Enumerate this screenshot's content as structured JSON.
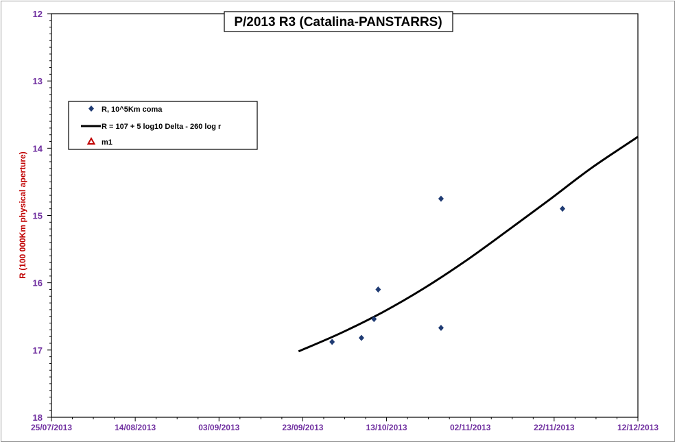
{
  "chart_data": {
    "type": "scatter",
    "title": "P/2013 R3 (Catalina-PANSTARRS)",
    "ylabel": "R (100 000Km physical aperture)",
    "xlabel": "",
    "ylim": [
      12,
      18
    ],
    "y_inverted": true,
    "y_ticks": [
      "12",
      "13",
      "14",
      "15",
      "16",
      "17",
      "18"
    ],
    "x_ticks": [
      "25/07/2013",
      "14/08/2013",
      "03/09/2013",
      "23/09/2013",
      "13/10/2013",
      "02/11/2013",
      "22/11/2013",
      "12/12/2013"
    ],
    "xlim": [
      "2013-07-25",
      "2013-12-12"
    ],
    "grid": false,
    "legend_position": "upper-left",
    "series": [
      {
        "name": "R, 10^5Km coma",
        "kind": "scatter",
        "marker": "diamond",
        "color": "#1f3b73",
        "x": [
          "2013-09-30",
          "2013-10-07",
          "2013-10-10",
          "2013-10-11",
          "2013-10-26",
          "2013-10-26",
          "2013-11-24"
        ],
        "y": [
          16.88,
          16.82,
          16.54,
          16.1,
          14.75,
          16.67,
          14.9
        ]
      },
      {
        "name": "R = 107 + 5 log10 Delta - 260  log r",
        "kind": "line",
        "color": "#000000",
        "x": [
          "2013-09-22",
          "2013-10-02",
          "2013-10-12",
          "2013-10-22",
          "2013-11-01",
          "2013-11-11",
          "2013-11-21",
          "2013-12-01",
          "2013-12-12"
        ],
        "y": [
          17.02,
          16.75,
          16.44,
          16.08,
          15.67,
          15.22,
          14.76,
          14.29,
          13.83
        ]
      },
      {
        "name": "m1",
        "kind": "scatter",
        "marker": "triangle",
        "color": "#c00000",
        "x": [],
        "y": []
      }
    ]
  }
}
